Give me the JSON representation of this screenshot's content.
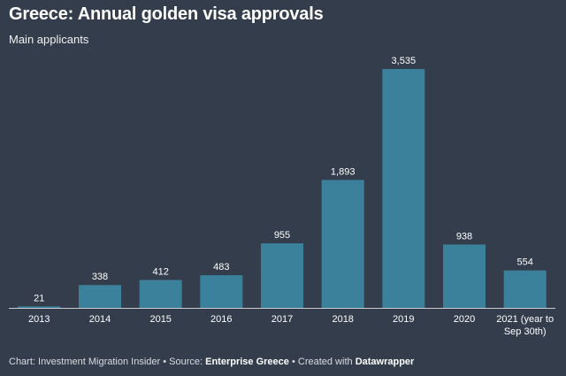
{
  "title": "Greece: Annual golden visa approvals",
  "subtitle": "Main applicants",
  "footer": {
    "prefix": "Chart: Investment Migration Insider • Source: ",
    "source": "Enterprise Greece",
    "mid": " • Created with ",
    "tool": "Datawrapper"
  },
  "colors": {
    "background": "#343d4c",
    "bar": "#3b819b",
    "baseline": "#c9cdd3",
    "text": "#ffffff"
  },
  "chart_data": {
    "type": "bar",
    "categories": [
      "2013",
      "2014",
      "2015",
      "2016",
      "2017",
      "2018",
      "2019",
      "2020",
      "2021 (year to Sep 30th)"
    ],
    "category_lines": [
      [
        "2013"
      ],
      [
        "2014"
      ],
      [
        "2015"
      ],
      [
        "2016"
      ],
      [
        "2017"
      ],
      [
        "2018"
      ],
      [
        "2019"
      ],
      [
        "2020"
      ],
      [
        "2021 (year to",
        "Sep 30th)"
      ]
    ],
    "values": [
      21,
      338,
      412,
      483,
      955,
      1893,
      3535,
      938,
      554
    ],
    "value_labels": [
      "21",
      "338",
      "412",
      "483",
      "955",
      "1,893",
      "3,535",
      "938",
      "554"
    ],
    "title": "Greece: Annual golden visa approvals",
    "subtitle": "Main applicants",
    "ylim": [
      0,
      3535
    ],
    "grid": false,
    "legend": "none"
  }
}
